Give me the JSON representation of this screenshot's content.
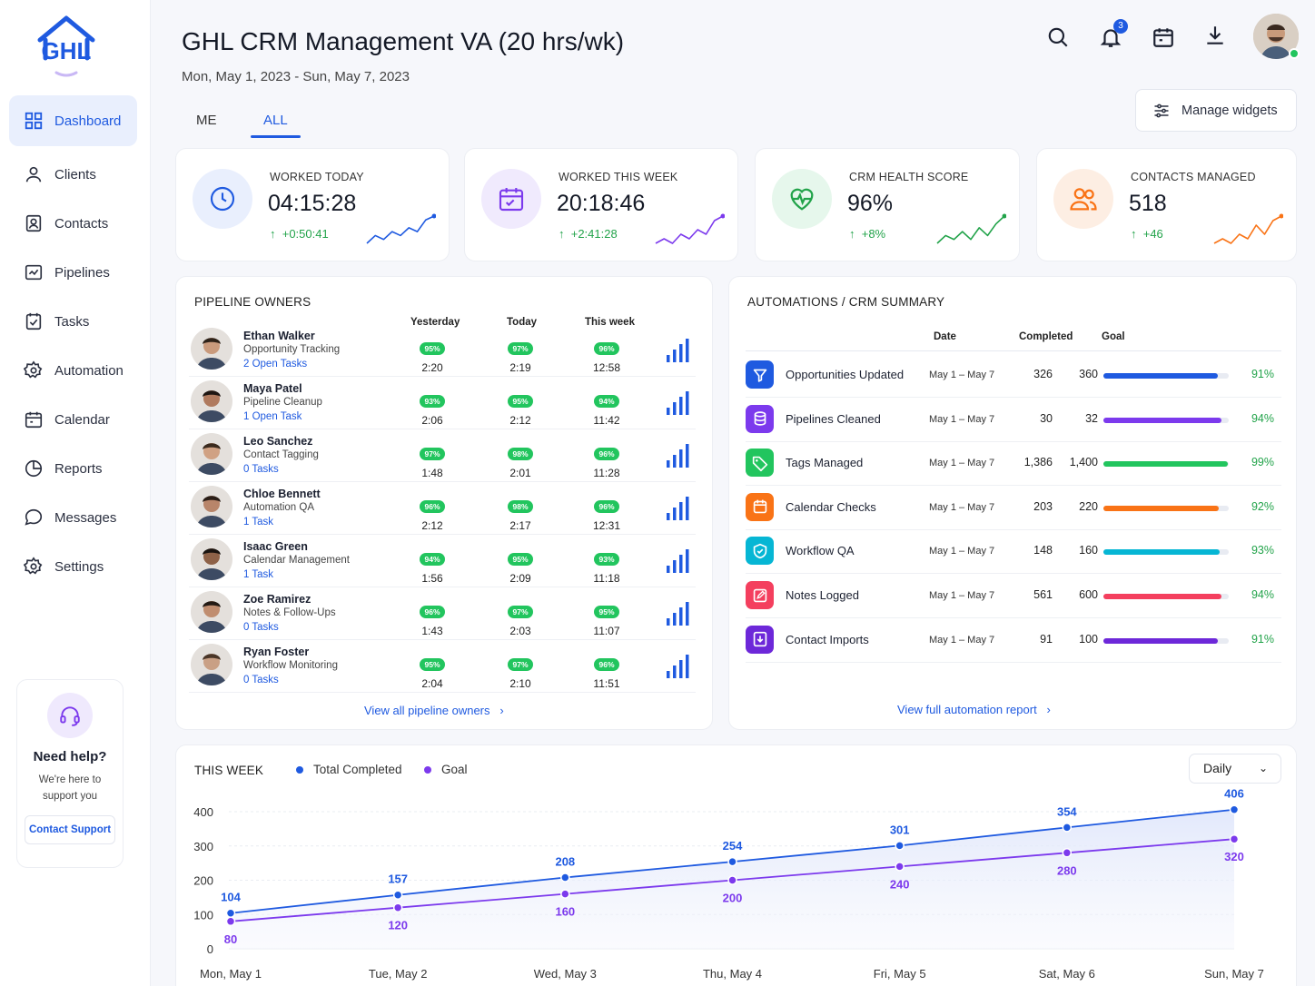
{
  "app": {
    "logo_text": "GHL"
  },
  "header": {
    "title": "GHL CRM Management VA (20 hrs/wk)",
    "dates": "Mon, May 1, 2023 - Sun, May 7, 2023",
    "notifications_count": "3",
    "manage_widgets": "Manage widgets"
  },
  "tabs": [
    {
      "label": "ME"
    },
    {
      "label": "ALL",
      "active": true
    }
  ],
  "sidebar": {
    "items": [
      {
        "label": "Dashboard",
        "icon": "grid-icon",
        "active": true
      },
      {
        "label": "Clients",
        "icon": "user-icon"
      },
      {
        "label": "Contacts",
        "icon": "contact-icon"
      },
      {
        "label": "Pipelines",
        "icon": "pipeline-icon"
      },
      {
        "label": "Tasks",
        "icon": "tasks-icon"
      },
      {
        "label": "Automation",
        "icon": "gear-icon"
      },
      {
        "label": "Calendar",
        "icon": "calendar-icon"
      },
      {
        "label": "Reports",
        "icon": "reports-icon"
      },
      {
        "label": "Messages",
        "icon": "chat-icon"
      },
      {
        "label": "Settings",
        "icon": "gear-icon"
      }
    ],
    "help": {
      "title": "Need help?",
      "subtitle": "We're here to support you",
      "button": "Contact Support"
    }
  },
  "kpis": [
    {
      "label": "WORKED TODAY",
      "value": "04:15:28",
      "delta": "+0:50:41",
      "color": "#1f5ae0",
      "bg": "#e9effd",
      "icon": "clock-icon",
      "trend": [
        3,
        5,
        4,
        6,
        5,
        7,
        6,
        9,
        10
      ]
    },
    {
      "label": "WORKED THIS WEEK",
      "value": "20:18:46",
      "delta": "+2:41:28",
      "color": "#7c3aed",
      "bg": "#f0eafd",
      "icon": "calendar-icon",
      "trend": [
        3,
        4,
        3,
        5,
        4,
        6,
        5,
        8,
        9
      ]
    },
    {
      "label": "CRM HEALTH SCORE",
      "value": "96%",
      "delta": "+8%",
      "color": "#22a34a",
      "bg": "#e6f7ec",
      "icon": "heartbeat-icon",
      "trend": [
        3,
        5,
        4,
        6,
        4,
        7,
        5,
        8,
        10
      ]
    },
    {
      "label": "CONTACTS MANAGED",
      "value": "518",
      "delta": "+46",
      "color": "#f97316",
      "bg": "#fdeee3",
      "icon": "users-icon",
      "trend": [
        3,
        4,
        3,
        5,
        4,
        7,
        5,
        8,
        9
      ]
    }
  ],
  "pipeline": {
    "title": "PIPELINE OWNERS",
    "headers": [
      "Yesterday",
      "Today",
      "This week"
    ],
    "rows": [
      {
        "name": "Ethan Walker",
        "role": "Opportunity Tracking",
        "tasks": "2 Open Tasks",
        "yp": "95%",
        "yt": "2:20",
        "tp": "97%",
        "tt": "2:19",
        "wp": "96%",
        "wt": "12:58"
      },
      {
        "name": "Maya Patel",
        "role": "Pipeline Cleanup",
        "tasks": "1 Open Task",
        "yp": "93%",
        "yt": "2:06",
        "tp": "95%",
        "tt": "2:12",
        "wp": "94%",
        "wt": "11:42"
      },
      {
        "name": "Leo Sanchez",
        "role": "Contact Tagging",
        "tasks": "0 Tasks",
        "yp": "97%",
        "yt": "1:48",
        "tp": "98%",
        "tt": "2:01",
        "wp": "96%",
        "wt": "11:28"
      },
      {
        "name": "Chloe Bennett",
        "role": "Automation QA",
        "tasks": "1 Task",
        "yp": "96%",
        "yt": "2:12",
        "tp": "98%",
        "tt": "2:17",
        "wp": "96%",
        "wt": "12:31"
      },
      {
        "name": "Isaac Green",
        "role": "Calendar Management",
        "tasks": "1 Task",
        "yp": "94%",
        "yt": "1:56",
        "tp": "95%",
        "tt": "2:09",
        "wp": "93%",
        "wt": "11:18"
      },
      {
        "name": "Zoe Ramirez",
        "role": "Notes & Follow-Ups",
        "tasks": "0 Tasks",
        "yp": "96%",
        "yt": "1:43",
        "tp": "97%",
        "tt": "2:03",
        "wp": "95%",
        "wt": "11:07"
      },
      {
        "name": "Ryan Foster",
        "role": "Workflow Monitoring",
        "tasks": "0 Tasks",
        "yp": "95%",
        "yt": "2:04",
        "tp": "97%",
        "tt": "2:10",
        "wp": "96%",
        "wt": "11:51"
      }
    ],
    "view_all": "View all pipeline owners"
  },
  "automation": {
    "title": "AUTOMATIONS / CRM SUMMARY",
    "headers": [
      "Date",
      "Completed",
      "Goal"
    ],
    "rows": [
      {
        "name": "Opportunities Updated",
        "date": "May 1 – May 7",
        "completed": "326",
        "goal": "360",
        "pct": "91%",
        "fill": 0.91,
        "color": "#1f5ae0",
        "icon": "filter-icon"
      },
      {
        "name": "Pipelines Cleaned",
        "date": "May 1 – May 7",
        "completed": "30",
        "goal": "32",
        "pct": "94%",
        "fill": 0.94,
        "color": "#7c3aed",
        "icon": "database-icon"
      },
      {
        "name": "Tags Managed",
        "date": "May 1 – May 7",
        "completed": "1,386",
        "goal": "1,400",
        "pct": "99%",
        "fill": 0.99,
        "color": "#22c55e",
        "icon": "tag-icon"
      },
      {
        "name": "Calendar Checks",
        "date": "May 1 – May 7",
        "completed": "203",
        "goal": "220",
        "pct": "92%",
        "fill": 0.92,
        "color": "#f97316",
        "icon": "calendar-icon"
      },
      {
        "name": "Workflow QA",
        "date": "May 1 – May 7",
        "completed": "148",
        "goal": "160",
        "pct": "93%",
        "fill": 0.93,
        "color": "#06b6d4",
        "icon": "shield-check-icon"
      },
      {
        "name": "Notes Logged",
        "date": "May 1 – May 7",
        "completed": "561",
        "goal": "600",
        "pct": "94%",
        "fill": 0.94,
        "color": "#f43f5e",
        "icon": "note-icon"
      },
      {
        "name": "Contact Imports",
        "date": "May 1 – May 7",
        "completed": "91",
        "goal": "100",
        "pct": "91%",
        "fill": 0.91,
        "color": "#6d28d9",
        "icon": "import-icon"
      }
    ],
    "view_all": "View full automation report"
  },
  "week": {
    "title": "THIS WEEK",
    "select": "Daily"
  },
  "chart_data": {
    "type": "line",
    "categories": [
      "Mon, May 1",
      "Tue, May 2",
      "Wed, May 3",
      "Thu, May 4",
      "Fri, May 5",
      "Sat, May 6",
      "Sun, May 7"
    ],
    "series": [
      {
        "name": "Total Completed",
        "values": [
          104,
          157,
          208,
          254,
          301,
          354,
          406
        ],
        "color": "#1f5ae0"
      },
      {
        "name": "Goal",
        "values": [
          80,
          120,
          160,
          200,
          240,
          280,
          320
        ],
        "color": "#7c3aed"
      }
    ],
    "yticks": [
      0,
      100,
      200,
      300,
      400
    ],
    "ylim": [
      0,
      400
    ],
    "grid": true,
    "legend": "top-left"
  }
}
